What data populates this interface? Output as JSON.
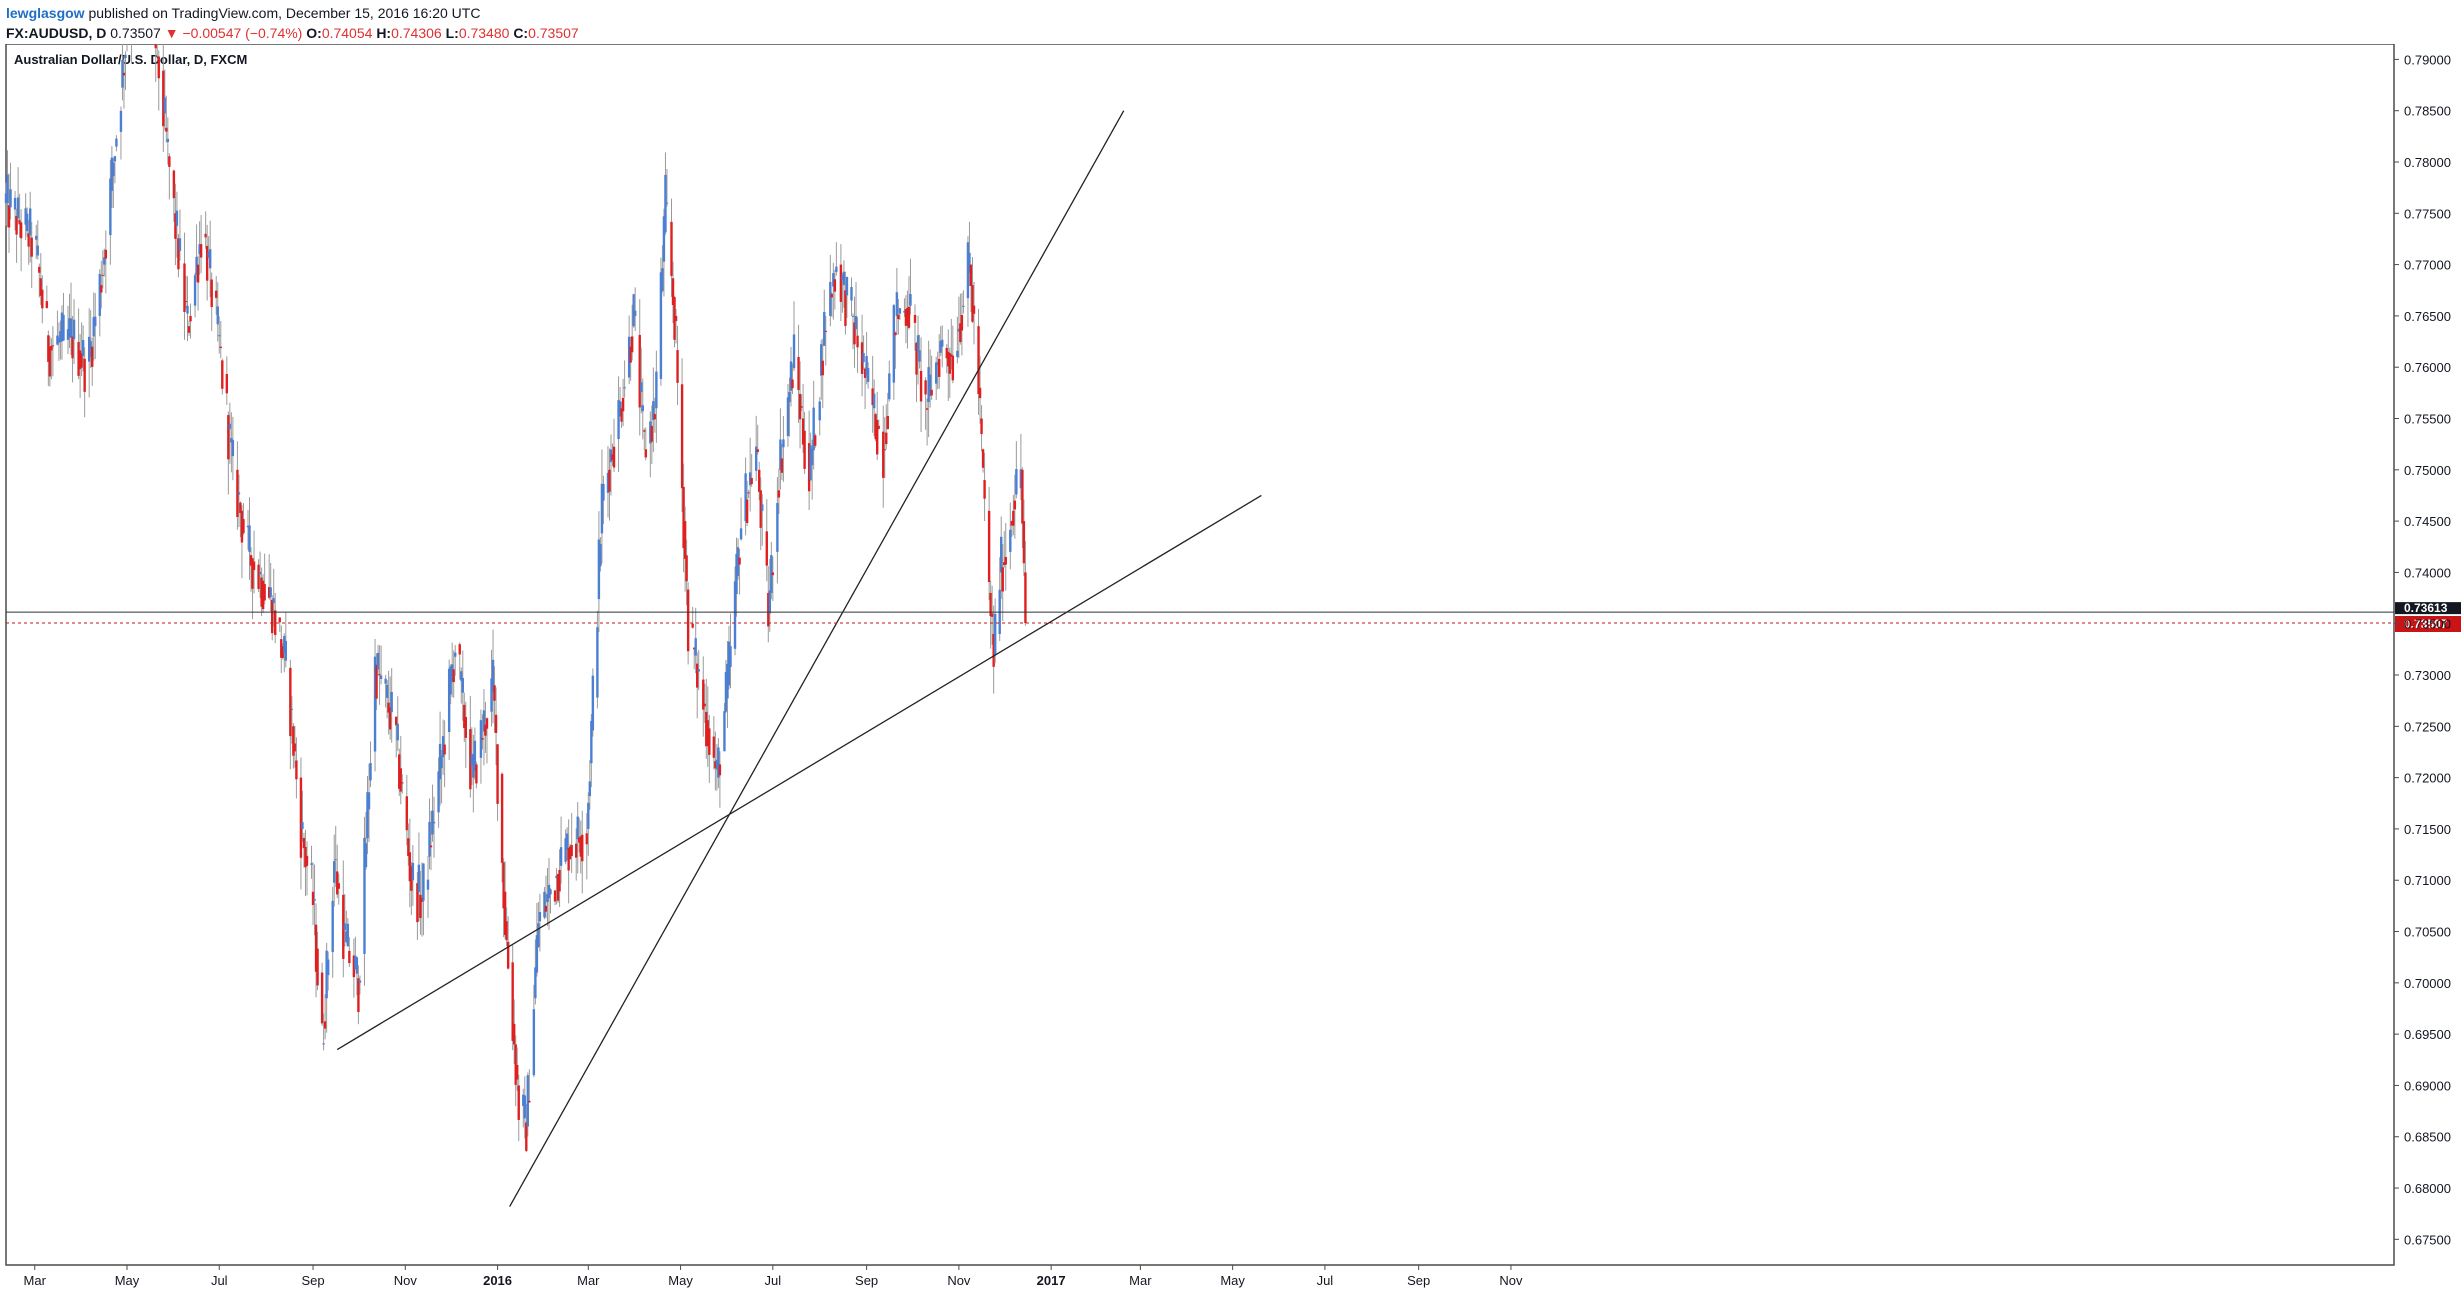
{
  "header": {
    "author": "lewglasgow",
    "published": "published on TradingView.com, December 15, 2016 16:20 UTC",
    "symbol": "FX:AUDUSD, D",
    "last": "0.73507",
    "change": "▼ −0.00547 (−0.74%)",
    "o_label": "O:",
    "o": "0.74054",
    "h_label": "H:",
    "h": "0.74306",
    "l_label": "L:",
    "l": "0.73480",
    "c_label": "C:",
    "c": "0.73507"
  },
  "colors": {
    "up": "#4a7fd4",
    "down": "#e02020",
    "wick": "#9a9a9a",
    "price_tag": "#c81414",
    "crosshair_tag": "#131722"
  },
  "chart_data": {
    "type": "candlestick",
    "title": "Australian Dollar/U.S. Dollar, D, FXCM",
    "x_axis_labels": [
      "Mar",
      "May",
      "Jul",
      "Sep",
      "Nov",
      "2016",
      "Mar",
      "May",
      "Jul",
      "Sep",
      "Nov",
      "2017",
      "Mar",
      "May",
      "Jul",
      "Sep",
      "Nov"
    ],
    "y_ticks": [
      "0.79000",
      "0.78500",
      "0.78000",
      "0.77500",
      "0.77000",
      "0.76500",
      "0.76000",
      "0.75500",
      "0.75000",
      "0.74500",
      "0.74000",
      "0.73500",
      "0.73000",
      "0.72500",
      "0.72000",
      "0.71500",
      "0.71000",
      "0.70500",
      "0.70000",
      "0.69500",
      "0.69000",
      "0.68500",
      "0.68000",
      "0.67500"
    ],
    "ylim": [
      0.6725,
      0.7915
    ],
    "date_range": [
      "2015-02-10",
      "2016-12-15"
    ],
    "close_path": [
      [
        "2015-02-10",
        0.776
      ],
      [
        "2015-03-01",
        0.772
      ],
      [
        "2015-03-10",
        0.762
      ],
      [
        "2015-03-25",
        0.763
      ],
      [
        "2015-04-05",
        0.76
      ],
      [
        "2015-04-15",
        0.77
      ],
      [
        "2015-05-01",
        0.793
      ],
      [
        "2015-05-14",
        0.8
      ],
      [
        "2015-06-01",
        0.775
      ],
      [
        "2015-06-10",
        0.764
      ],
      [
        "2015-06-20",
        0.774
      ],
      [
        "2015-07-01",
        0.762
      ],
      [
        "2015-07-10",
        0.75
      ],
      [
        "2015-07-20",
        0.742
      ],
      [
        "2015-08-05",
        0.737
      ],
      [
        "2015-08-15",
        0.73
      ],
      [
        "2015-08-24",
        0.715
      ],
      [
        "2015-09-01",
        0.708
      ],
      [
        "2015-09-07",
        0.694
      ],
      [
        "2015-09-15",
        0.712
      ],
      [
        "2015-09-22",
        0.704
      ],
      [
        "2015-10-01",
        0.7
      ],
      [
        "2015-10-12",
        0.731
      ],
      [
        "2015-10-25",
        0.725
      ],
      [
        "2015-11-05",
        0.71
      ],
      [
        "2015-11-12",
        0.708
      ],
      [
        "2015-11-25",
        0.722
      ],
      [
        "2015-12-04",
        0.733
      ],
      [
        "2015-12-15",
        0.72
      ],
      [
        "2015-12-29",
        0.729
      ],
      [
        "2016-01-06",
        0.706
      ],
      [
        "2016-01-15",
        0.688
      ],
      [
        "2016-01-20",
        0.686
      ],
      [
        "2016-01-28",
        0.706
      ],
      [
        "2016-02-05",
        0.709
      ],
      [
        "2016-02-15",
        0.713
      ],
      [
        "2016-02-29",
        0.715
      ],
      [
        "2016-03-10",
        0.747
      ],
      [
        "2016-03-22",
        0.756
      ],
      [
        "2016-03-31",
        0.765
      ],
      [
        "2016-04-07",
        0.752
      ],
      [
        "2016-04-14",
        0.756
      ],
      [
        "2016-04-21",
        0.776
      ],
      [
        "2016-04-27",
        0.765
      ],
      [
        "2016-05-06",
        0.735
      ],
      [
        "2016-05-15",
        0.728
      ],
      [
        "2016-05-25",
        0.72
      ],
      [
        "2016-06-01",
        0.729
      ],
      [
        "2016-06-10",
        0.745
      ],
      [
        "2016-06-20",
        0.752
      ],
      [
        "2016-06-28",
        0.736
      ],
      [
        "2016-07-05",
        0.75
      ],
      [
        "2016-07-15",
        0.761
      ],
      [
        "2016-07-25",
        0.749
      ],
      [
        "2016-08-05",
        0.765
      ],
      [
        "2016-08-12",
        0.77
      ],
      [
        "2016-08-22",
        0.765
      ],
      [
        "2016-09-05",
        0.756
      ],
      [
        "2016-09-12",
        0.752
      ],
      [
        "2016-09-20",
        0.765
      ],
      [
        "2016-09-29",
        0.766
      ],
      [
        "2016-10-10",
        0.756
      ],
      [
        "2016-10-20",
        0.762
      ],
      [
        "2016-10-28",
        0.761
      ],
      [
        "2016-11-08",
        0.77
      ],
      [
        "2016-11-14",
        0.758
      ],
      [
        "2016-11-20",
        0.74
      ],
      [
        "2016-11-24",
        0.732
      ],
      [
        "2016-11-28",
        0.74
      ],
      [
        "2016-12-02",
        0.742
      ],
      [
        "2016-12-07",
        0.747
      ],
      [
        "2016-12-12",
        0.75
      ],
      [
        "2016-12-14",
        0.74
      ],
      [
        "2016-12-15",
        0.7351
      ]
    ],
    "trendlines": [
      {
        "name": "trendline-lower",
        "from": [
          "2015-09-17",
          0.6935
        ],
        "to": [
          "2017-05-20",
          0.7475
        ]
      },
      {
        "name": "trendline-steep",
        "from": [
          "2016-01-09",
          0.6782
        ],
        "to": [
          "2017-02-18",
          0.785
        ]
      }
    ],
    "hlines": [
      {
        "name": "crosshair-line",
        "value": 0.73613,
        "label": "0.73613"
      },
      {
        "name": "last-price-line",
        "value": 0.73507,
        "label": "0.73507"
      }
    ]
  }
}
